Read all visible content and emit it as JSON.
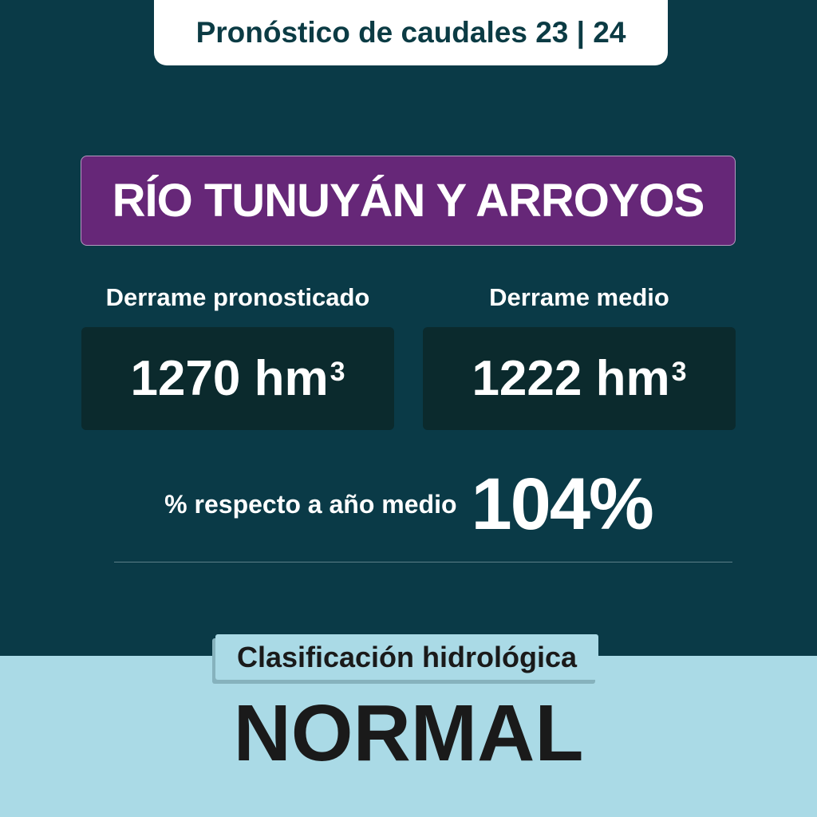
{
  "header": {
    "title": "Pronóstico de caudales 23 | 24"
  },
  "river": {
    "name": "RÍO TUNUYÁN Y ARROYOS"
  },
  "forecast": {
    "label": "Derrame pronosticado",
    "value": "1270 hm",
    "unit_sup": "3"
  },
  "mean": {
    "label": "Derrame medio",
    "value": "1222 hm",
    "unit_sup": "3"
  },
  "percent": {
    "label": "% respecto a año medio",
    "value": "104%"
  },
  "classification": {
    "label": "Clasificación hidrológica",
    "value": "NORMAL"
  },
  "colors": {
    "background": "#0a3a47",
    "accent": "#662778",
    "light": "#aadae6",
    "value_box": "#0b2a2d"
  }
}
